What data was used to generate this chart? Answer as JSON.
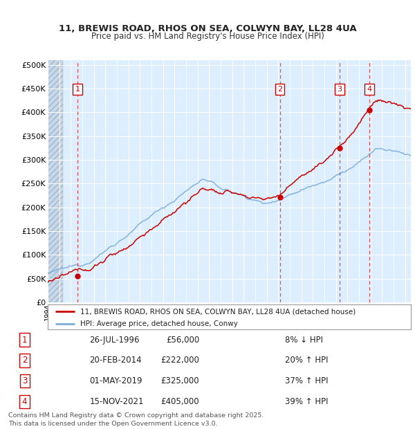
{
  "title1": "11, BREWIS ROAD, RHOS ON SEA, COLWYN BAY, LL28 4UA",
  "title2": "Price paid vs. HM Land Registry's House Price Index (HPI)",
  "xlim_start": 1994.0,
  "xlim_end": 2025.5,
  "ylim_min": 0,
  "ylim_max": 510000,
  "yticks": [
    0,
    50000,
    100000,
    150000,
    200000,
    250000,
    300000,
    350000,
    400000,
    450000,
    500000
  ],
  "ytick_labels": [
    "£0",
    "£50K",
    "£100K",
    "£150K",
    "£200K",
    "£250K",
    "£300K",
    "£350K",
    "£400K",
    "£450K",
    "£500K"
  ],
  "sale_color": "#cc0000",
  "hpi_color": "#7aaddd",
  "background_color": "#ddeeff",
  "grid_color": "#ffffff",
  "vline_color": "#dd3333",
  "transactions": [
    {
      "date_dec": 1996.57,
      "price": 56000,
      "label": "1",
      "date_str": "26-JUL-1996",
      "price_str": "£56,000",
      "change": "8% ↓ HPI"
    },
    {
      "date_dec": 2014.13,
      "price": 222000,
      "label": "2",
      "date_str": "20-FEB-2014",
      "price_str": "£222,000",
      "change": "20% ↑ HPI"
    },
    {
      "date_dec": 2019.33,
      "price": 325000,
      "label": "3",
      "date_str": "01-MAY-2019",
      "price_str": "£325,000",
      "change": "37% ↑ HPI"
    },
    {
      "date_dec": 2021.88,
      "price": 405000,
      "label": "4",
      "date_str": "15-NOV-2021",
      "price_str": "£405,000",
      "change": "39% ↑ HPI"
    }
  ],
  "legend_line1": "11, BREWIS ROAD, RHOS ON SEA, COLWYN BAY, LL28 4UA (detached house)",
  "legend_line2": "HPI: Average price, detached house, Conwy",
  "footer": "Contains HM Land Registry data © Crown copyright and database right 2025.\nThis data is licensed under the Open Government Licence v3.0."
}
